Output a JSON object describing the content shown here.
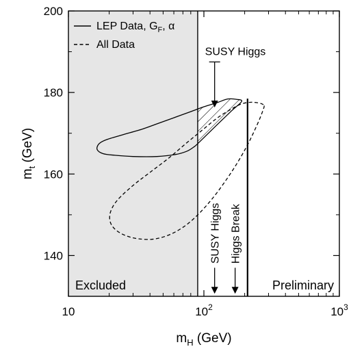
{
  "chart_data": {
    "type": "scatter",
    "xscale": "log",
    "xlim": [
      10,
      1000
    ],
    "ylim": [
      130,
      200
    ],
    "xlabel": {
      "base": "m",
      "sub": "H",
      "rest": " (GeV)"
    },
    "ylabel": {
      "base": "m",
      "sub": "t",
      "rest": " (GeV)"
    },
    "xticks": [
      {
        "value": 10,
        "base": "10",
        "exp": ""
      },
      {
        "value": 100,
        "base": "10",
        "exp": "2"
      },
      {
        "value": 1000,
        "base": "10",
        "exp": "3"
      }
    ],
    "yticks": [
      140,
      160,
      180,
      200
    ],
    "legend": {
      "placement": "top-left",
      "entries": [
        {
          "style": "solid",
          "parts": [
            "LEP Data, G",
            "F",
            ", α"
          ]
        },
        {
          "style": "dashed",
          "label": "All Data"
        }
      ]
    },
    "series": [
      {
        "name": "LEP Data, GF, α",
        "style": "solid",
        "points": [
          [
            90.4,
            167.5
          ],
          [
            120,
            171.5
          ],
          [
            160,
            175.5
          ],
          [
            190,
            177.8
          ],
          [
            175,
            178.3
          ],
          [
            150,
            178.4
          ],
          [
            125,
            177.5
          ],
          [
            100,
            176.5
          ],
          [
            80,
            175.3
          ],
          [
            60,
            173.8
          ],
          [
            45,
            172.3
          ],
          [
            35,
            171
          ],
          [
            25,
            169.6
          ],
          [
            19,
            168.4
          ],
          [
            16.8,
            167.4
          ],
          [
            16.3,
            166
          ],
          [
            18,
            165
          ],
          [
            22,
            164.6
          ],
          [
            30,
            164.3
          ],
          [
            45,
            164.3
          ],
          [
            62,
            164.8
          ],
          [
            75,
            165.6
          ],
          [
            84,
            166.6
          ],
          [
            90.4,
            167.5
          ]
        ]
      },
      {
        "name": "All Data",
        "style": "dashed",
        "points": [
          [
            275,
            177
          ],
          [
            230,
            177.6
          ],
          [
            190,
            177.2
          ],
          [
            155,
            175.7
          ],
          [
            125,
            173.7
          ],
          [
            100,
            171.1
          ],
          [
            75,
            167.7
          ],
          [
            55,
            163.9
          ],
          [
            40,
            160.4
          ],
          [
            30,
            157.2
          ],
          [
            23,
            153.6
          ],
          [
            20.5,
            150.8
          ],
          [
            20.3,
            148.4
          ],
          [
            22,
            146.5
          ],
          [
            26,
            145
          ],
          [
            33,
            144.1
          ],
          [
            44,
            144.1
          ],
          [
            60,
            145.6
          ],
          [
            82,
            148.7
          ],
          [
            115,
            153.9
          ],
          [
            160,
            160.5
          ],
          [
            205,
            166.5
          ],
          [
            245,
            171.8
          ],
          [
            272,
            175.5
          ],
          [
            275,
            177
          ]
        ]
      }
    ],
    "excluded_region": {
      "label": "Excluded",
      "x_max": 90
    },
    "hatched_region": {
      "x_min": 90,
      "x_max": 210,
      "boundary_series": "LEP Data, GF, α"
    },
    "vertical_lines": [
      {
        "x": 90,
        "style": "solid"
      },
      {
        "x": 210,
        "style": "solid",
        "y_max": 178.5
      }
    ],
    "arrow_annotations": [
      {
        "label": "SUSY Higgs",
        "x": 120,
        "y_tip": 176.5,
        "y_base": 187.5,
        "text_orientation": "horizontal"
      },
      {
        "label": "SUSY Higgs",
        "x": 120,
        "y_tip": 130.8,
        "y_base": 137,
        "text_orientation": "vertical"
      },
      {
        "label": "Higgs Break",
        "x": 170,
        "y_tip": 130.8,
        "y_base": 137,
        "text_orientation": "vertical"
      }
    ],
    "corner_labels": [
      {
        "label": "Excluded",
        "placement": "bottom-left"
      },
      {
        "label": "Preliminary",
        "placement": "bottom-right"
      }
    ]
  }
}
